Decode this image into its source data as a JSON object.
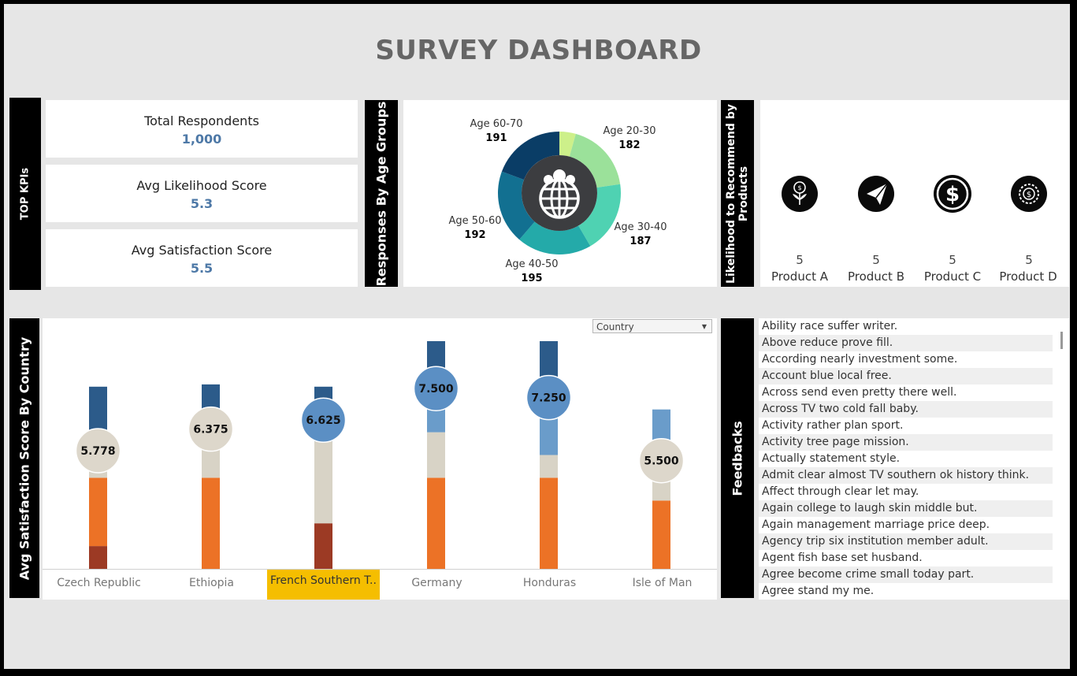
{
  "dashboard": {
    "title": "SURVEY DASHBOARD"
  },
  "kpis": {
    "section_label": "TOP KPIs",
    "items": [
      {
        "label": "Total Respondents",
        "value": "1,000"
      },
      {
        "label": "Avg Likelihood Score",
        "value": "5.3"
      },
      {
        "label": "Avg Satisfaction Score",
        "value": "5.5"
      }
    ]
  },
  "age_groups": {
    "section_label": "Responses By Age Groups",
    "center_icon": "globe-people-icon",
    "labels": [
      {
        "name": "Age 60-70",
        "value": "191"
      },
      {
        "name": "Age 20-30",
        "value": "182"
      },
      {
        "name": "Age 30-40",
        "value": "187"
      },
      {
        "name": "Age 40-50",
        "value": "195"
      },
      {
        "name": "Age 50-60",
        "value": "192"
      }
    ]
  },
  "products": {
    "section_label": "Likelihood to Recommend by Products",
    "items": [
      {
        "name": "Product A",
        "value": "5",
        "icon": "money-plant-icon"
      },
      {
        "name": "Product B",
        "value": "5",
        "icon": "paper-plane-icon"
      },
      {
        "name": "Product C",
        "value": "5",
        "icon": "dollar-coin-icon"
      },
      {
        "name": "Product D",
        "value": "5",
        "icon": "coin-gear-icon"
      }
    ]
  },
  "satisfaction": {
    "section_label": "Avg Satisfaction Score By Country",
    "filter": {
      "label": "Country"
    },
    "highlight_color": "#f5be00"
  },
  "feedbacks": {
    "section_label": "Feedbacks",
    "items": [
      "Ability race suffer writer.",
      "Above reduce prove fill.",
      "According nearly investment some.",
      "Account blue local free.",
      "Across send even pretty there well.",
      "Across TV two cold fall baby.",
      "Activity rather plan sport.",
      "Activity tree page mission.",
      "Actually statement style.",
      "Admit clear almost TV southern ok history think.",
      "Affect through clear let may.",
      "Again college to laugh skin middle but.",
      "Again management marriage price deep.",
      "Agency trip six institution member adult.",
      "Agent fish base set husband.",
      "Agree become crime small today part.",
      "Agree stand my me."
    ]
  },
  "chart_data": [
    {
      "type": "pie",
      "title": "",
      "categories": [
        "Age 20-30",
        "Age 30-40",
        "Age 40-50",
        "Age 50-60",
        "Age 60-70"
      ],
      "values": [
        182,
        187,
        195,
        192,
        191
      ],
      "colors": [
        "#9be19a",
        "#4fd2b2",
        "#24aaa9",
        "#127091",
        "#0a3d66"
      ],
      "extra_segment_color": "#cdf08a"
    },
    {
      "type": "bar",
      "title": "",
      "categories": [
        "Czech Republic",
        "Ethiopia",
        "French Southern T..",
        "Germany",
        "Honduras",
        "Isle of Man"
      ],
      "avg_scores": [
        "5.778",
        "6.375",
        "6.625",
        "7.500",
        "7.250",
        "5.500"
      ],
      "ylim": [
        0,
        100
      ],
      "series": [
        {
          "color": "#9c3a24",
          "values": [
            10,
            0,
            20,
            0,
            0,
            0
          ]
        },
        {
          "color": "#ec7226",
          "values": [
            30,
            40,
            0,
            40,
            40,
            30
          ]
        },
        {
          "color": "#d8d3c6",
          "values": [
            8,
            14,
            36,
            20,
            10,
            15
          ]
        },
        {
          "color": "#6a9cca",
          "values": [
            12,
            7,
            4,
            20,
            28,
            25
          ]
        },
        {
          "color": "#2c5b8a",
          "values": [
            20,
            20,
            20,
            20,
            22,
            0
          ]
        }
      ],
      "bubble_colors": [
        "#ddd7cb",
        "#ddd7cb",
        "#5b8fc4",
        "#5b8fc4",
        "#5b8fc4",
        "#ddd7cb"
      ],
      "highlighted_category": "French Southern T.."
    }
  ]
}
